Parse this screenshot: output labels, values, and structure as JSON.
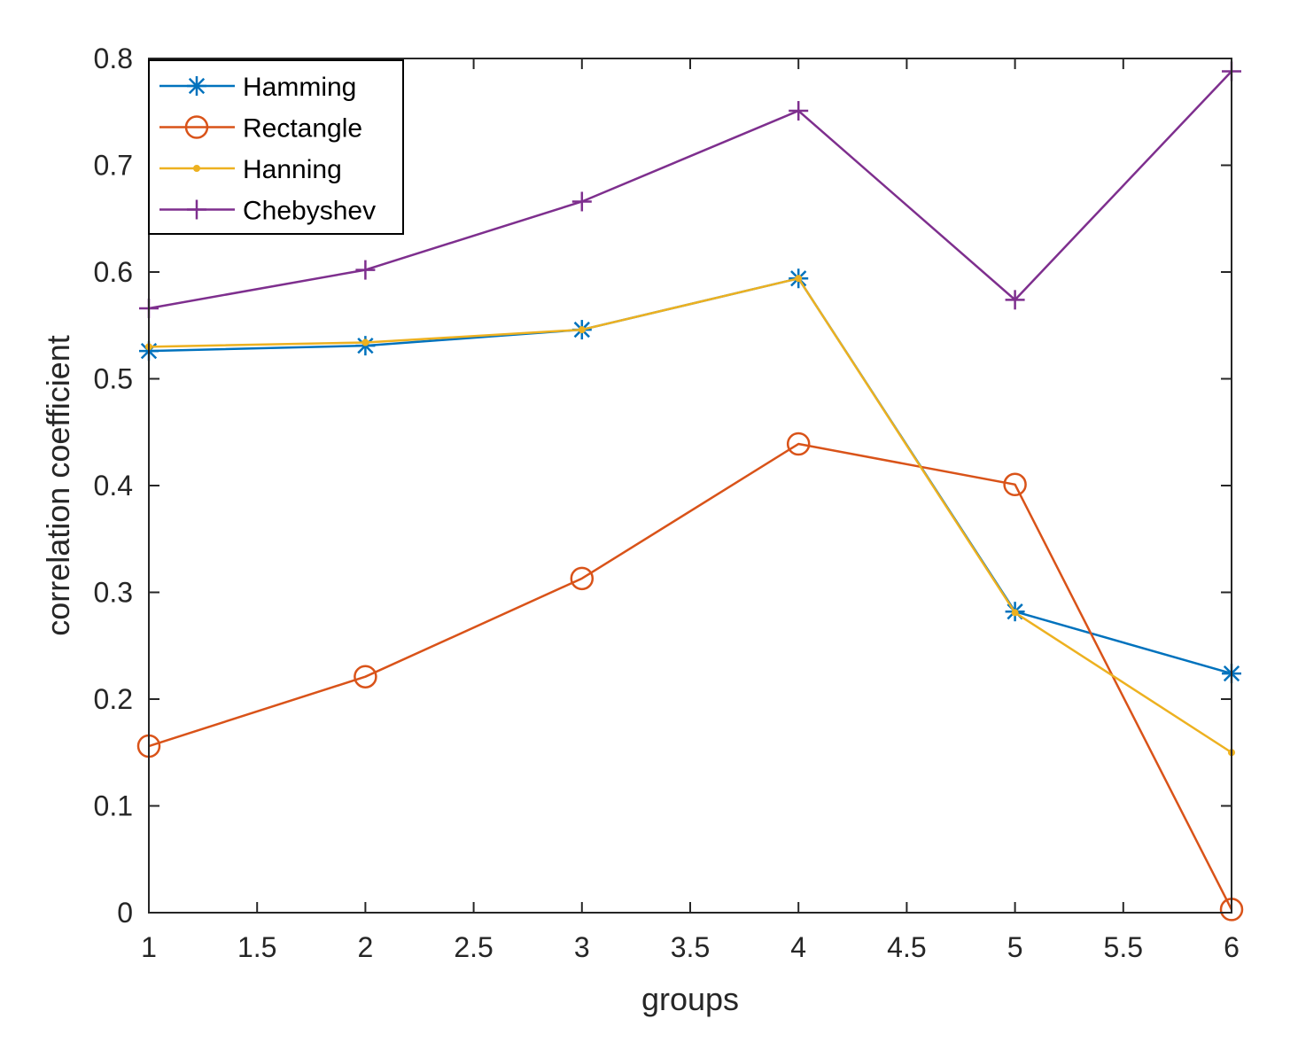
{
  "chart_data": {
    "type": "line",
    "title": "",
    "xlabel": "groups",
    "ylabel": "correlation coefficient",
    "xlim": [
      1,
      6
    ],
    "ylim": [
      0,
      0.8
    ],
    "xticks": [
      "1",
      "1.5",
      "2",
      "2.5",
      "3",
      "3.5",
      "4",
      "4.5",
      "5",
      "5.5",
      "6"
    ],
    "yticks": [
      "0",
      "0.1",
      "0.2",
      "0.3",
      "0.4",
      "0.5",
      "0.6",
      "0.7",
      "0.8"
    ],
    "legend_position": "top-left",
    "x": [
      1,
      2,
      3,
      4,
      5,
      6
    ],
    "series": [
      {
        "name": "Hamming",
        "color": "#0072BD",
        "marker": "asterisk",
        "values": [
          0.526,
          0.531,
          0.546,
          0.594,
          0.282,
          0.224
        ]
      },
      {
        "name": "Rectangle",
        "color": "#D95319",
        "marker": "circle",
        "values": [
          0.156,
          0.221,
          0.313,
          0.439,
          0.401,
          0.003
        ]
      },
      {
        "name": "Hanning",
        "color": "#EDB120",
        "marker": "point",
        "values": [
          0.53,
          0.534,
          0.546,
          0.594,
          0.281,
          0.15
        ]
      },
      {
        "name": "Chebyshev",
        "color": "#7E2F8E",
        "marker": "plus",
        "values": [
          0.566,
          0.602,
          0.666,
          0.751,
          0.574,
          0.788
        ]
      }
    ]
  }
}
